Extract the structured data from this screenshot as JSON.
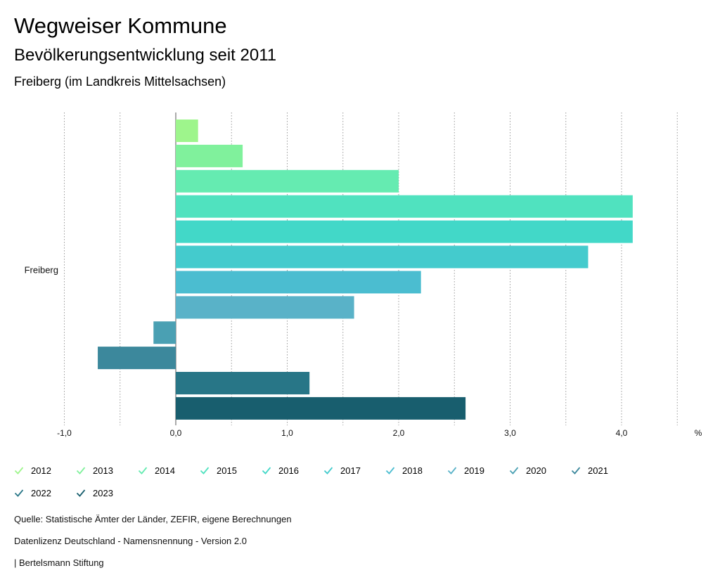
{
  "header": {
    "title": "Wegweiser Kommune",
    "subtitle": "Bevölkerungsentwicklung seit 2011",
    "region": "Freiberg (im Landkreis Mittelsachsen)"
  },
  "chart_data": {
    "type": "bar",
    "orientation": "horizontal",
    "categories": [
      "Freiberg"
    ],
    "series": [
      {
        "name": "2012",
        "values": [
          0.2
        ],
        "color": "#9ef58c"
      },
      {
        "name": "2013",
        "values": [
          0.6
        ],
        "color": "#80f19c"
      },
      {
        "name": "2014",
        "values": [
          2.0
        ],
        "color": "#65ebb1"
      },
      {
        "name": "2015",
        "values": [
          4.1
        ],
        "color": "#50e2bf"
      },
      {
        "name": "2016",
        "values": [
          4.1
        ],
        "color": "#42d8c8"
      },
      {
        "name": "2017",
        "values": [
          3.7
        ],
        "color": "#44cbcd"
      },
      {
        "name": "2018",
        "values": [
          2.2
        ],
        "color": "#4bbdd0"
      },
      {
        "name": "2019",
        "values": [
          1.6
        ],
        "color": "#59b2c8"
      },
      {
        "name": "2020",
        "values": [
          -0.2
        ],
        "color": "#4aa0b3"
      },
      {
        "name": "2021",
        "values": [
          -0.7
        ],
        "color": "#3c889c"
      },
      {
        "name": "2022",
        "values": [
          1.2
        ],
        "color": "#287687"
      },
      {
        "name": "2023",
        "values": [
          2.6
        ],
        "color": "#185e6e"
      }
    ],
    "xlim": [
      -1.0,
      4.5
    ],
    "xticks": [
      -1.0,
      0.0,
      1.0,
      2.0,
      3.0,
      4.0
    ],
    "tick_labels": [
      "-1,0",
      "0,0",
      "1,0",
      "2,0",
      "3,0",
      "4,0"
    ],
    "gridlines": [
      -1.0,
      -0.5,
      0.0,
      0.5,
      1.0,
      1.5,
      2.0,
      2.5,
      3.0,
      3.5,
      4.0,
      4.5
    ],
    "unit_label": "%",
    "grid": true,
    "legend_position": "bottom-left"
  },
  "footer": {
    "source": "Quelle: Statistische Ämter der Länder, ZEFIR, eigene Berechnungen",
    "license": "Datenlizenz Deutschland - Namensnennung - Version 2.0",
    "publisher": "| Bertelsmann Stiftung"
  }
}
